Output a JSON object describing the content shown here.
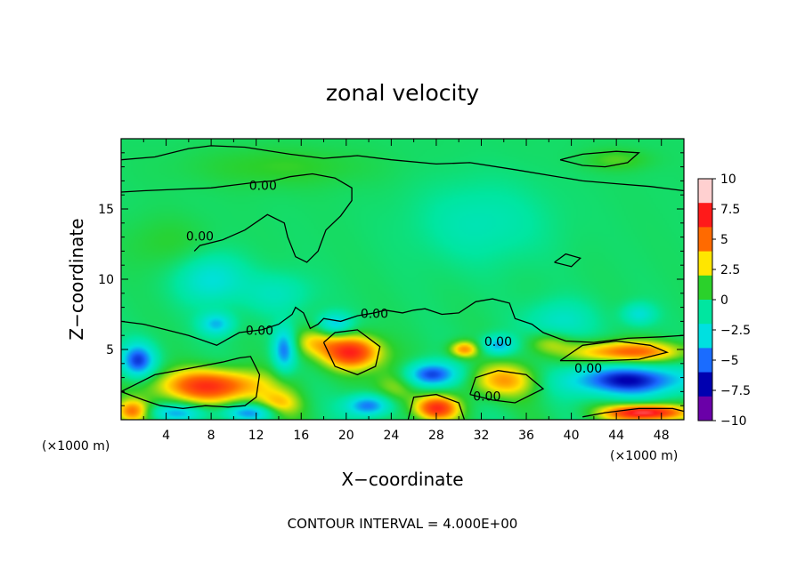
{
  "chart_data": {
    "type": "heatmap",
    "title": "zonal velocity",
    "xlabel": "X−coordinate",
    "ylabel": "Z−coordinate",
    "x_units_left": "(×1000 m)",
    "x_units_right": "(×1000 m)",
    "xlim": [
      0,
      50
    ],
    "ylim": [
      0,
      20
    ],
    "x_ticks": [
      4,
      8,
      12,
      16,
      20,
      24,
      28,
      32,
      36,
      40,
      44,
      48
    ],
    "y_ticks": [
      5,
      10,
      15
    ],
    "colorbar": {
      "min": -10,
      "max": 10,
      "ticks": [
        10,
        7.5,
        5,
        2.5,
        0,
        -2.5,
        -5,
        -7.5,
        -10
      ],
      "tick_labels": [
        "10",
        "7.5",
        "5",
        "2.5",
        "0",
        "−2.5",
        "−5",
        "−7.5",
        "−10"
      ],
      "colors": [
        "#ffd0d0",
        "#ff1a1a",
        "#ff6a00",
        "#ffe600",
        "#2bd12b",
        "#00e6a0",
        "#00e0e0",
        "#1a6cff",
        "#0000b0",
        "#6a00a8"
      ]
    },
    "contour_interval": "CONTOUR INTERVAL = 4.000E+00",
    "contour_labels": [
      {
        "text": "0.00",
        "x": 12.6,
        "y": 16.6
      },
      {
        "text": "0.00",
        "x": 7.0,
        "y": 13.0
      },
      {
        "text": "0.00",
        "x": 12.3,
        "y": 6.3
      },
      {
        "text": "0.00",
        "x": 22.5,
        "y": 7.5
      },
      {
        "text": "0.00",
        "x": 33.5,
        "y": 5.5
      },
      {
        "text": "0.00",
        "x": 41.5,
        "y": 3.6
      },
      {
        "text": "0.00",
        "x": 32.5,
        "y": 1.6
      }
    ],
    "features": [
      {
        "x": 8.0,
        "z": 2.4,
        "v": 7.0,
        "rx": 5.0,
        "rz": 1.2
      },
      {
        "x": 1.0,
        "z": 0.6,
        "v": 5.0,
        "rx": 1.5,
        "rz": 0.8
      },
      {
        "x": 20.5,
        "z": 4.8,
        "v": 7.5,
        "rx": 2.6,
        "rz": 1.2
      },
      {
        "x": 28.0,
        "z": 0.8,
        "v": 7.0,
        "rx": 2.0,
        "rz": 0.9
      },
      {
        "x": 34.0,
        "z": 2.8,
        "v": 4.5,
        "rx": 3.2,
        "rz": 1.2
      },
      {
        "x": 30.5,
        "z": 5.0,
        "v": 5.0,
        "rx": 1.3,
        "rz": 0.6
      },
      {
        "x": 45.0,
        "z": 4.8,
        "v": 6.0,
        "rx": 5.0,
        "rz": 0.8
      },
      {
        "x": 46.5,
        "z": 0.5,
        "v": 9.0,
        "rx": 3.5,
        "rz": 0.6
      },
      {
        "x": 17.0,
        "z": 5.5,
        "v": 3.0,
        "rx": 2.0,
        "rz": 1.0
      },
      {
        "x": 14.0,
        "z": 1.0,
        "v": 3.5,
        "rx": 2.0,
        "rz": 1.0
      },
      {
        "x": 24.5,
        "z": 2.5,
        "v": 3.0,
        "rx": 2.0,
        "rz": 1.5
      },
      {
        "x": 38.0,
        "z": 5.5,
        "v": 2.5,
        "rx": 2.0,
        "rz": 0.8
      },
      {
        "x": 1.5,
        "z": 4.2,
        "v": -6.5,
        "rx": 1.5,
        "rz": 1.2
      },
      {
        "x": 5.0,
        "z": 0.5,
        "v": -4.0,
        "rx": 2.5,
        "rz": 0.6
      },
      {
        "x": 11.5,
        "z": 0.5,
        "v": -5.0,
        "rx": 2.5,
        "rz": 0.6
      },
      {
        "x": 14.5,
        "z": 5.0,
        "v": -5.5,
        "rx": 1.0,
        "rz": 1.5
      },
      {
        "x": 22.0,
        "z": 1.0,
        "v": -6.0,
        "rx": 2.0,
        "rz": 0.8
      },
      {
        "x": 27.5,
        "z": 3.2,
        "v": -7.0,
        "rx": 2.5,
        "rz": 0.9
      },
      {
        "x": 33.5,
        "z": 5.3,
        "v": -4.5,
        "rx": 1.5,
        "rz": 0.7
      },
      {
        "x": 45.0,
        "z": 2.8,
        "v": -7.5,
        "rx": 5.5,
        "rz": 1.1
      },
      {
        "x": 8.5,
        "z": 6.8,
        "v": -4.0,
        "rx": 1.5,
        "rz": 0.8
      },
      {
        "x": 19.0,
        "z": 6.8,
        "v": -4.0,
        "rx": 1.5,
        "rz": 0.8
      },
      {
        "x": 8.0,
        "z": 10.0,
        "v": -3.2,
        "rx": 3.0,
        "rz": 1.8
      },
      {
        "x": 14.0,
        "z": 9.0,
        "v": -2.0,
        "rx": 3.0,
        "rz": 1.5
      },
      {
        "x": 39.0,
        "z": 7.0,
        "v": -2.5,
        "rx": 3.0,
        "rz": 1.5
      },
      {
        "x": 32.0,
        "z": 14.0,
        "v": -1.8,
        "rx": 6.0,
        "rz": 3.0
      },
      {
        "x": 46.0,
        "z": 7.5,
        "v": -3.0,
        "rx": 1.5,
        "rz": 0.8
      },
      {
        "x": 14.0,
        "z": 18.0,
        "v": 1.2,
        "rx": 8.0,
        "rz": 1.5
      },
      {
        "x": 4.0,
        "z": 12.5,
        "v": 1.0,
        "rx": 4.0,
        "rz": 2.0
      },
      {
        "x": 44.0,
        "z": 18.5,
        "v": 1.5,
        "rx": 3.0,
        "rz": 0.8
      }
    ],
    "contours_zero": [
      [
        [
          0,
          16.2
        ],
        [
          2,
          16.3
        ],
        [
          5,
          16.4
        ],
        [
          8,
          16.5
        ],
        [
          10,
          16.7
        ],
        [
          12,
          16.9
        ],
        [
          13.5,
          17.0
        ],
        [
          15,
          17.3
        ],
        [
          17,
          17.5
        ],
        [
          19,
          17.2
        ],
        [
          20.5,
          16.5
        ],
        [
          20.5,
          15.6
        ],
        [
          19.5,
          14.5
        ],
        [
          18.2,
          13.5
        ],
        [
          17.5,
          12.0
        ],
        [
          16.5,
          11.2
        ],
        [
          15.5,
          11.6
        ],
        [
          14.8,
          13.0
        ],
        [
          14.5,
          14.0
        ],
        [
          13.0,
          14.6
        ],
        [
          11.0,
          13.5
        ],
        [
          9.0,
          12.8
        ],
        [
          7.0,
          12.4
        ],
        [
          6.5,
          12.0
        ]
      ],
      [
        [
          0,
          18.5
        ],
        [
          3,
          18.7
        ],
        [
          6,
          19.3
        ],
        [
          8,
          19.5
        ],
        [
          11,
          19.4
        ],
        [
          15,
          18.9
        ],
        [
          18,
          18.6
        ],
        [
          21,
          18.8
        ],
        [
          24,
          18.5
        ],
        [
          28,
          18.2
        ],
        [
          31,
          18.3
        ],
        [
          35,
          17.8
        ],
        [
          38,
          17.4
        ],
        [
          41,
          17.0
        ],
        [
          44,
          16.8
        ],
        [
          47,
          16.6
        ],
        [
          50,
          16.3
        ]
      ],
      [
        [
          0,
          7.0
        ],
        [
          2,
          6.8
        ],
        [
          4,
          6.4
        ],
        [
          6,
          6.0
        ],
        [
          8.5,
          5.3
        ],
        [
          10.5,
          6.2
        ],
        [
          12.5,
          6.4
        ],
        [
          14,
          6.8
        ],
        [
          15.2,
          7.5
        ],
        [
          15.5,
          8.0
        ],
        [
          16.2,
          7.6
        ],
        [
          16.8,
          6.5
        ],
        [
          17.5,
          6.8
        ],
        [
          18,
          7.2
        ],
        [
          19.5,
          7.0
        ],
        [
          21,
          7.4
        ],
        [
          22.5,
          7.6
        ],
        [
          23.5,
          7.8
        ],
        [
          25,
          7.6
        ],
        [
          26,
          7.8
        ],
        [
          27,
          7.9
        ],
        [
          28.5,
          7.5
        ],
        [
          30,
          7.6
        ],
        [
          31.5,
          8.4
        ],
        [
          33,
          8.6
        ],
        [
          34.5,
          8.3
        ],
        [
          35.0,
          7.2
        ],
        [
          36.5,
          6.8
        ],
        [
          37.5,
          6.2
        ],
        [
          39.5,
          5.6
        ],
        [
          42,
          5.5
        ],
        [
          45,
          5.8
        ],
        [
          48,
          5.9
        ],
        [
          50,
          6.0
        ]
      ],
      [
        [
          0,
          2.0
        ],
        [
          1.5,
          2.6
        ],
        [
          3,
          3.2
        ],
        [
          5,
          3.5
        ],
        [
          7,
          3.8
        ],
        [
          9,
          4.1
        ],
        [
          10.5,
          4.4
        ],
        [
          11.5,
          4.5
        ],
        [
          12.3,
          3.2
        ],
        [
          12.0,
          1.6
        ],
        [
          11.0,
          1.0
        ],
        [
          9.5,
          0.9
        ],
        [
          7.5,
          1.0
        ],
        [
          5.5,
          0.8
        ],
        [
          3.5,
          1.0
        ],
        [
          2.0,
          1.4
        ],
        [
          0,
          2.0
        ]
      ],
      [
        [
          18.0,
          5.5
        ],
        [
          19.0,
          6.2
        ],
        [
          21.0,
          6.4
        ],
        [
          23.0,
          5.2
        ],
        [
          22.6,
          3.8
        ],
        [
          21.0,
          3.2
        ],
        [
          19.0,
          3.8
        ],
        [
          18.0,
          5.5
        ]
      ],
      [
        [
          25.5,
          0
        ],
        [
          26.0,
          1.6
        ],
        [
          28.0,
          1.8
        ],
        [
          30.0,
          1.2
        ],
        [
          30.5,
          0
        ]
      ],
      [
        [
          31.0,
          1.8
        ],
        [
          31.5,
          3.0
        ],
        [
          33.5,
          3.5
        ],
        [
          36.0,
          3.2
        ],
        [
          37.5,
          2.2
        ],
        [
          35.0,
          1.2
        ],
        [
          33.0,
          1.4
        ],
        [
          31.0,
          1.8
        ]
      ],
      [
        [
          39.0,
          4.2
        ],
        [
          41.0,
          5.3
        ],
        [
          44.0,
          5.6
        ],
        [
          47.0,
          5.3
        ],
        [
          48.5,
          4.8
        ],
        [
          46.0,
          4.3
        ],
        [
          43.0,
          4.2
        ],
        [
          39.0,
          4.2
        ]
      ],
      [
        [
          41.0,
          0.2
        ],
        [
          43.0,
          0.5
        ],
        [
          46.0,
          0.8
        ],
        [
          49.0,
          0.8
        ],
        [
          50,
          0.6
        ]
      ],
      [
        [
          39.0,
          18.5
        ],
        [
          41.0,
          18.9
        ],
        [
          44.0,
          19.1
        ],
        [
          46.0,
          19.0
        ],
        [
          45.0,
          18.3
        ],
        [
          43.0,
          18.0
        ],
        [
          41.0,
          18.1
        ],
        [
          39.0,
          18.5
        ]
      ],
      [
        [
          38.5,
          11.2
        ],
        [
          39.5,
          11.8
        ],
        [
          40.8,
          11.5
        ],
        [
          40.0,
          10.9
        ],
        [
          38.5,
          11.2
        ]
      ]
    ]
  }
}
